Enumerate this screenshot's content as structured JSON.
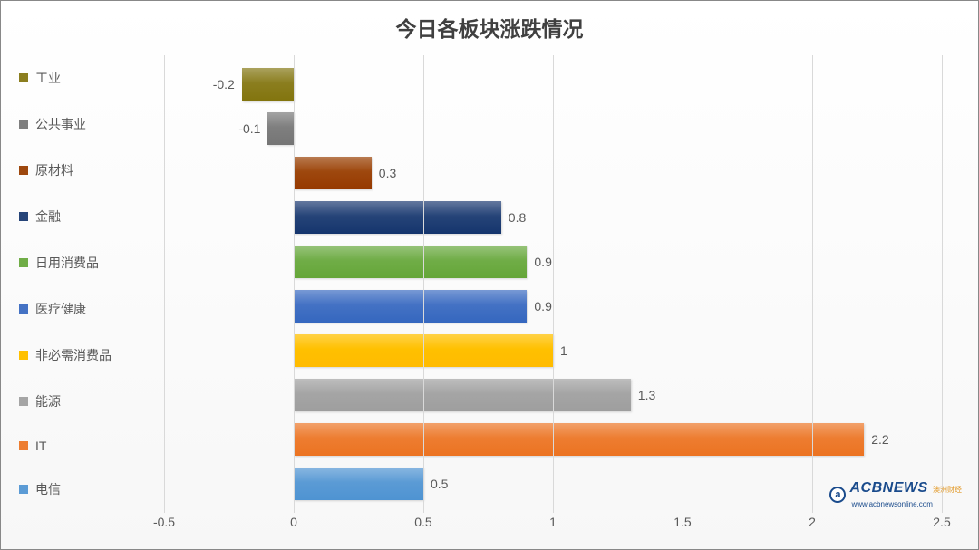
{
  "chart": {
    "type": "bar-horizontal",
    "title": "今日各板块涨跌情况",
    "title_fontsize": 23,
    "title_color": "#404040",
    "background_gradient": [
      "#ffffff",
      "#f7f7f7"
    ],
    "border_color": "#888888",
    "grid_color": "#d9d9d9",
    "label_fontsize": 14,
    "label_color": "#595959",
    "x_axis": {
      "min": -0.5,
      "max": 2.5,
      "tick_step": 0.5,
      "ticks": [
        -0.5,
        0,
        0.5,
        1,
        1.5,
        2,
        2.5
      ]
    },
    "series": [
      {
        "name": "工业",
        "value": -0.2,
        "color": "#8b7e1f"
      },
      {
        "name": "公共事业",
        "value": -0.1,
        "color": "#7f7f7f"
      },
      {
        "name": "原材料",
        "value": 0.3,
        "color": "#9e480e"
      },
      {
        "name": "金融",
        "value": 0.8,
        "color": "#264478"
      },
      {
        "name": "日用消费品",
        "value": 0.9,
        "color": "#70ad47"
      },
      {
        "name": "医疗健康",
        "value": 0.9,
        "color": "#4472c4"
      },
      {
        "name": "非必需消费品",
        "value": 1.0,
        "color": "#ffc000",
        "label": "1"
      },
      {
        "name": "能源",
        "value": 1.3,
        "color": "#a5a5a5"
      },
      {
        "name": "IT",
        "value": 2.2,
        "color": "#ed7d31"
      },
      {
        "name": "电信",
        "value": 0.5,
        "color": "#5b9bd5"
      }
    ],
    "bar_height_ratio": 0.74,
    "bar_shadow": "1px 1px 2px rgba(0,0,0,0.15)"
  },
  "watermark": {
    "logo_letter": "a",
    "brand": "ACBNEWS",
    "subtitle": "澳洲财经",
    "url": "www.acbnewsonline.com",
    "brand_color": "#1a4b8c",
    "accent_color": "#e39b2b"
  }
}
